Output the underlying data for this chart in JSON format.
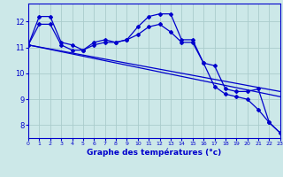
{
  "xlabel": "Graphe des températures (°c)",
  "background_color": "#cce8e8",
  "line_color": "#0000cc",
  "grid_color": "#aacccc",
  "ylim": [
    7.5,
    12.7
  ],
  "xlim": [
    0,
    23
  ],
  "yticks": [
    8,
    9,
    10,
    11,
    12
  ],
  "xticks": [
    0,
    1,
    2,
    3,
    4,
    5,
    6,
    7,
    8,
    9,
    10,
    11,
    12,
    13,
    14,
    15,
    16,
    17,
    18,
    19,
    20,
    21,
    22,
    23
  ],
  "series": [
    {
      "x": [
        0,
        1,
        2,
        3,
        4,
        5,
        6,
        7,
        8,
        9,
        10,
        11,
        12,
        13,
        14,
        15,
        16,
        17,
        18,
        19,
        20,
        21,
        22,
        23
      ],
      "y": [
        11.1,
        12.2,
        12.2,
        11.2,
        11.1,
        10.9,
        11.2,
        11.3,
        11.2,
        11.3,
        11.8,
        12.2,
        12.3,
        12.3,
        11.3,
        11.3,
        10.4,
        9.5,
        9.2,
        9.1,
        9.0,
        8.6,
        8.1,
        7.7
      ]
    },
    {
      "x": [
        0,
        1,
        2,
        3,
        4,
        5,
        6,
        7,
        8,
        9,
        10,
        11,
        12,
        13,
        14,
        15,
        16,
        17,
        18,
        19,
        20,
        21,
        22,
        23
      ],
      "y": [
        11.1,
        11.9,
        11.9,
        11.1,
        10.9,
        10.9,
        11.1,
        11.2,
        11.2,
        11.3,
        11.5,
        11.8,
        11.9,
        11.6,
        11.2,
        11.2,
        10.4,
        10.3,
        9.4,
        9.3,
        9.3,
        9.4,
        8.1,
        7.7
      ]
    },
    {
      "x": [
        0,
        23
      ],
      "y": [
        11.1,
        9.3
      ]
    },
    {
      "x": [
        0,
        23
      ],
      "y": [
        11.1,
        9.1
      ]
    }
  ]
}
